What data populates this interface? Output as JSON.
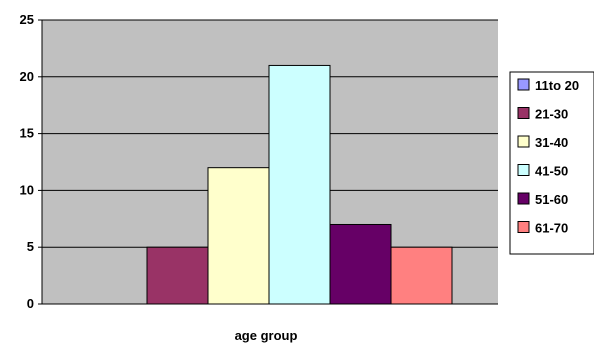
{
  "chart_data": {
    "type": "bar",
    "xlabel": "age group",
    "ylabel": "",
    "ylim": [
      0,
      25
    ],
    "yticks": [
      0,
      5,
      10,
      15,
      20,
      25
    ],
    "grid": true,
    "legend_position": "right",
    "plot_background": "#c0c0c0",
    "series": [
      {
        "name": "11to 20",
        "value": 0,
        "color": "#9999ff"
      },
      {
        "name": "21-30",
        "value": 5,
        "color": "#993366"
      },
      {
        "name": "31-40",
        "value": 12,
        "color": "#ffffcc"
      },
      {
        "name": "41-50",
        "value": 21,
        "color": "#ccffff"
      },
      {
        "name": "51-60",
        "value": 7,
        "color": "#660066"
      },
      {
        "name": "61-70",
        "value": 5,
        "color": "#ff8080"
      }
    ]
  }
}
